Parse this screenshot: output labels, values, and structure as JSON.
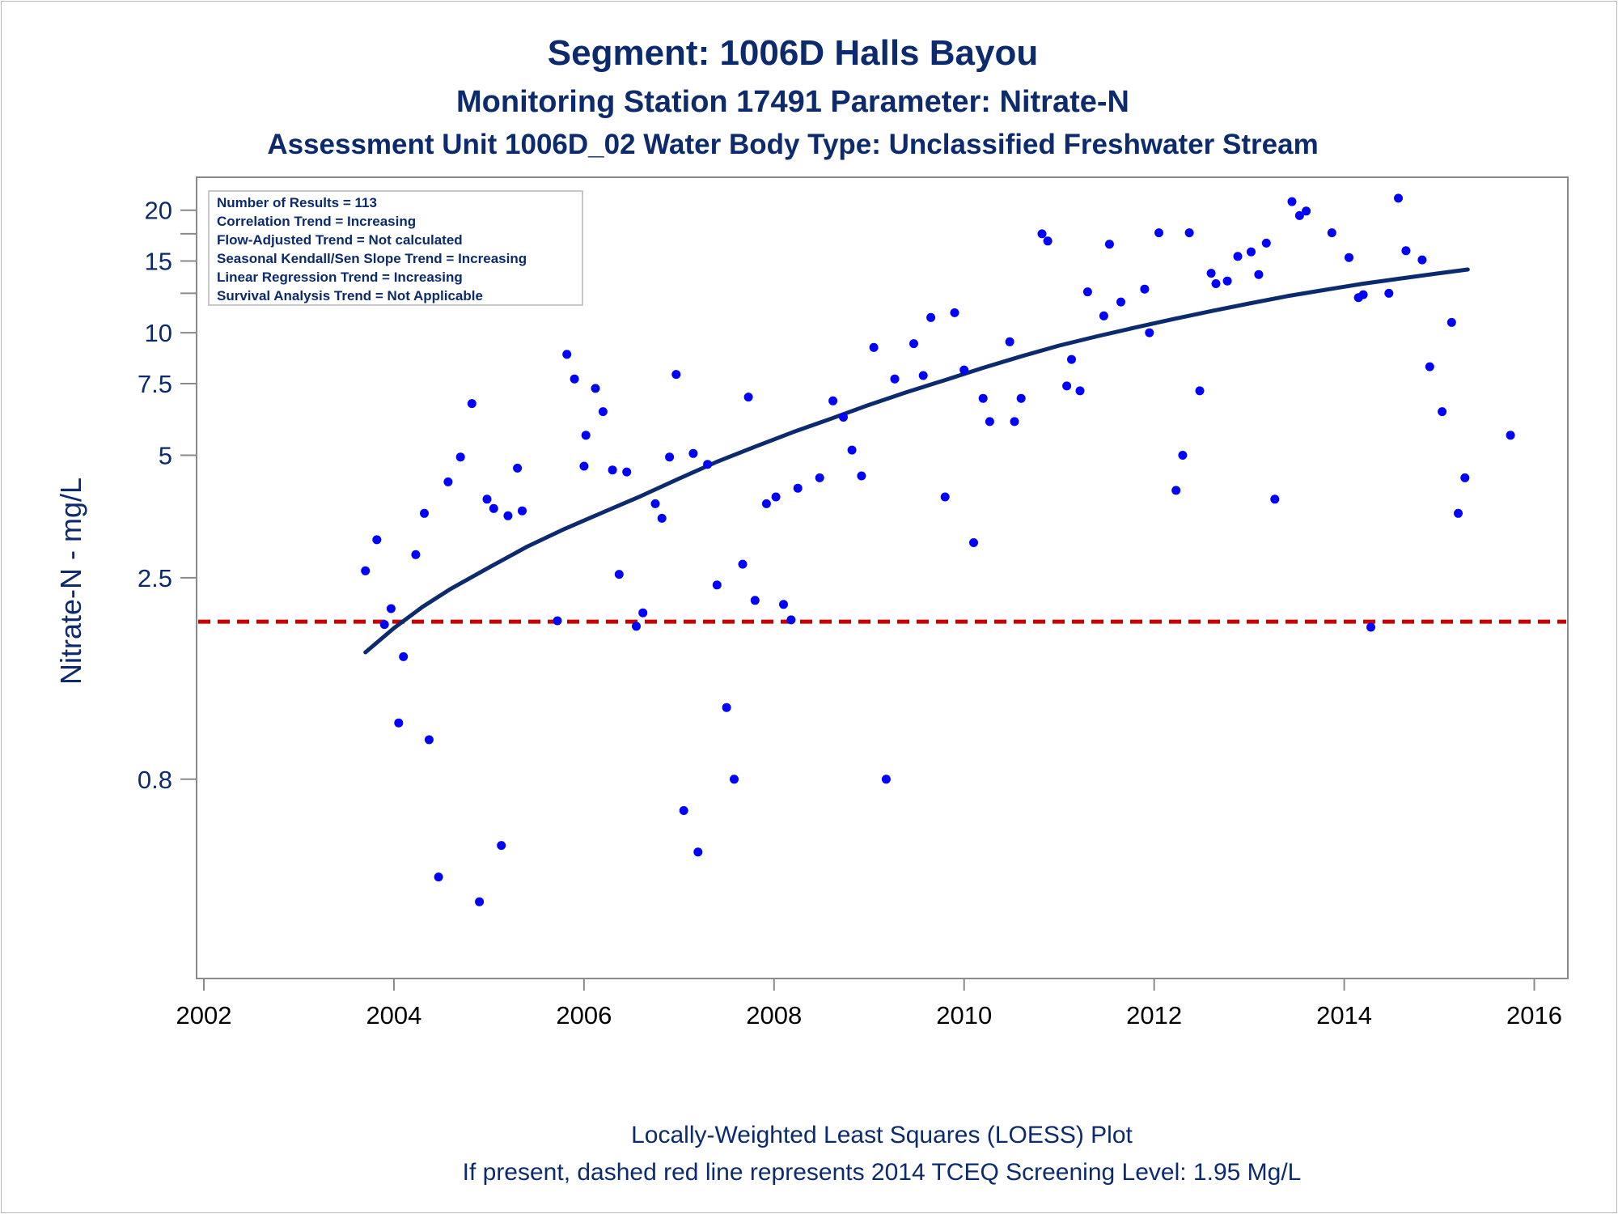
{
  "titles": {
    "line1": "Segment: 1006D  Halls Bayou",
    "line2": "Monitoring Station 17491 Parameter: Nitrate-N",
    "line3": "Assessment Unit 1006D_02   Water Body Type: Unclassified Freshwater Stream"
  },
  "stats_box": [
    "Number of Results = 113",
    "Correlation Trend = Increasing",
    "Flow-Adjusted Trend = Not calculated",
    "Seasonal Kendall/Sen Slope Trend = Increasing",
    "Linear Regression Trend = Increasing",
    "Survival Analysis Trend = Not Applicable"
  ],
  "footnotes": {
    "line1": "Locally-Weighted Least Squares (LOESS) Plot",
    "line2": "If present, dashed red line represents 2014 TCEQ Screening Level: 1.95 Mg/L"
  },
  "chart_data": {
    "type": "scatter",
    "ylabel": "Nitrate-N - mg/L",
    "xlabel": "",
    "y_scale": "log",
    "x_ticks": [
      2002,
      2004,
      2006,
      2008,
      2010,
      2012,
      2014,
      2016
    ],
    "y_ticks": [
      {
        "value": 0.8,
        "label": "0.8"
      },
      {
        "value": 2.5,
        "label": "2.5"
      },
      {
        "value": 5,
        "label": "5"
      },
      {
        "value": 7.5,
        "label": "7.5"
      },
      {
        "value": 10,
        "label": "10"
      },
      {
        "value": 15,
        "label": "15"
      },
      {
        "value": 20,
        "label": "20"
      }
    ],
    "y_minor_ticks": [
      12.5,
      17.5
    ],
    "xlim": [
      2002,
      2016.2
    ],
    "ylim": [
      0.27,
      22.5
    ],
    "point_color": "#0000ff",
    "loess_color": "#0c2a6e",
    "screening_color": "#cc0000",
    "screening_level": 1.95,
    "points": [
      [
        2003.7,
        2.6
      ],
      [
        2003.82,
        3.1
      ],
      [
        2003.9,
        1.92
      ],
      [
        2003.97,
        2.1
      ],
      [
        2004.05,
        1.1
      ],
      [
        2004.1,
        1.6
      ],
      [
        2004.23,
        2.85
      ],
      [
        2004.32,
        3.6
      ],
      [
        2004.37,
        1.0
      ],
      [
        2004.47,
        0.46
      ],
      [
        2004.57,
        4.3
      ],
      [
        2004.7,
        4.95
      ],
      [
        2004.82,
        6.7
      ],
      [
        2004.9,
        0.4
      ],
      [
        2004.98,
        3.9
      ],
      [
        2005.05,
        3.7
      ],
      [
        2005.13,
        0.55
      ],
      [
        2005.2,
        3.55
      ],
      [
        2005.3,
        4.65
      ],
      [
        2005.35,
        3.65
      ],
      [
        2005.72,
        1.96
      ],
      [
        2005.82,
        8.85
      ],
      [
        2005.9,
        7.7
      ],
      [
        2006.0,
        4.7
      ],
      [
        2006.02,
        5.6
      ],
      [
        2006.12,
        7.3
      ],
      [
        2006.2,
        6.4
      ],
      [
        2006.3,
        4.6
      ],
      [
        2006.37,
        2.55
      ],
      [
        2006.45,
        4.55
      ],
      [
        2006.55,
        1.9
      ],
      [
        2006.62,
        2.05
      ],
      [
        2006.75,
        3.8
      ],
      [
        2006.82,
        3.5
      ],
      [
        2006.9,
        4.95
      ],
      [
        2006.97,
        7.9
      ],
      [
        2007.05,
        0.67
      ],
      [
        2007.15,
        5.05
      ],
      [
        2007.2,
        0.53
      ],
      [
        2007.3,
        4.75
      ],
      [
        2007.4,
        2.4
      ],
      [
        2007.5,
        1.2
      ],
      [
        2007.58,
        0.8
      ],
      [
        2007.67,
        2.7
      ],
      [
        2007.73,
        6.95
      ],
      [
        2007.8,
        2.2
      ],
      [
        2007.92,
        3.8
      ],
      [
        2008.02,
        3.95
      ],
      [
        2008.1,
        2.15
      ],
      [
        2008.18,
        1.97
      ],
      [
        2008.25,
        4.15
      ],
      [
        2008.48,
        4.4
      ],
      [
        2008.62,
        6.8
      ],
      [
        2008.73,
        6.2
      ],
      [
        2008.82,
        5.15
      ],
      [
        2008.92,
        4.45
      ],
      [
        2009.05,
        9.2
      ],
      [
        2009.18,
        0.8
      ],
      [
        2009.27,
        7.7
      ],
      [
        2009.47,
        9.4
      ],
      [
        2009.57,
        7.85
      ],
      [
        2009.65,
        10.9
      ],
      [
        2009.8,
        3.95
      ],
      [
        2009.9,
        11.2
      ],
      [
        2010.0,
        8.1
      ],
      [
        2010.1,
        3.05
      ],
      [
        2010.2,
        6.9
      ],
      [
        2010.27,
        6.05
      ],
      [
        2010.48,
        9.5
      ],
      [
        2010.53,
        6.05
      ],
      [
        2010.6,
        6.9
      ],
      [
        2010.82,
        17.5
      ],
      [
        2010.88,
        16.8
      ],
      [
        2011.08,
        7.4
      ],
      [
        2011.13,
        8.6
      ],
      [
        2011.22,
        7.2
      ],
      [
        2011.3,
        12.6
      ],
      [
        2011.47,
        11.0
      ],
      [
        2011.53,
        16.5
      ],
      [
        2011.65,
        11.9
      ],
      [
        2011.9,
        12.8
      ],
      [
        2011.95,
        10.0
      ],
      [
        2012.05,
        17.6
      ],
      [
        2012.23,
        4.1
      ],
      [
        2012.3,
        5.0
      ],
      [
        2012.37,
        17.6
      ],
      [
        2012.48,
        7.2
      ],
      [
        2012.6,
        14.0
      ],
      [
        2012.65,
        13.2
      ],
      [
        2012.77,
        13.4
      ],
      [
        2012.88,
        15.4
      ],
      [
        2013.02,
        15.8
      ],
      [
        2013.1,
        13.9
      ],
      [
        2013.18,
        16.6
      ],
      [
        2013.27,
        3.9
      ],
      [
        2013.45,
        21.0
      ],
      [
        2013.53,
        19.4
      ],
      [
        2013.6,
        19.9
      ],
      [
        2013.87,
        17.6
      ],
      [
        2014.05,
        15.3
      ],
      [
        2014.15,
        12.2
      ],
      [
        2014.2,
        12.4
      ],
      [
        2014.28,
        1.89
      ],
      [
        2014.47,
        12.5
      ],
      [
        2014.57,
        21.4
      ],
      [
        2014.65,
        15.9
      ],
      [
        2014.82,
        15.1
      ],
      [
        2014.9,
        8.25
      ],
      [
        2015.03,
        6.4
      ],
      [
        2015.13,
        10.6
      ],
      [
        2015.2,
        3.6
      ],
      [
        2015.27,
        4.4
      ],
      [
        2015.75,
        5.6
      ]
    ],
    "loess": [
      [
        2003.7,
        1.64
      ],
      [
        2004.0,
        1.88
      ],
      [
        2004.3,
        2.12
      ],
      [
        2004.6,
        2.35
      ],
      [
        2005.0,
        2.65
      ],
      [
        2005.4,
        2.98
      ],
      [
        2005.8,
        3.3
      ],
      [
        2006.2,
        3.62
      ],
      [
        2006.6,
        3.97
      ],
      [
        2007.0,
        4.38
      ],
      [
        2007.4,
        4.82
      ],
      [
        2007.8,
        5.25
      ],
      [
        2008.2,
        5.7
      ],
      [
        2008.6,
        6.15
      ],
      [
        2009.0,
        6.65
      ],
      [
        2009.4,
        7.15
      ],
      [
        2009.8,
        7.65
      ],
      [
        2010.2,
        8.2
      ],
      [
        2010.6,
        8.75
      ],
      [
        2011.0,
        9.3
      ],
      [
        2011.4,
        9.8
      ],
      [
        2011.8,
        10.3
      ],
      [
        2012.2,
        10.8
      ],
      [
        2012.6,
        11.3
      ],
      [
        2013.0,
        11.8
      ],
      [
        2013.4,
        12.3
      ],
      [
        2013.8,
        12.75
      ],
      [
        2014.2,
        13.2
      ],
      [
        2014.6,
        13.6
      ],
      [
        2015.0,
        14.0
      ],
      [
        2015.3,
        14.3
      ]
    ]
  }
}
